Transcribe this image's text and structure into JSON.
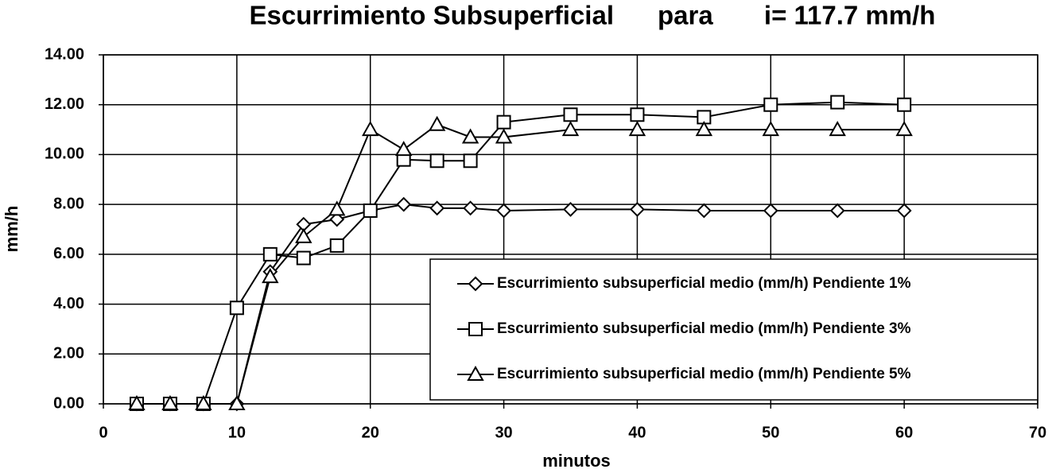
{
  "chart_data": {
    "type": "line",
    "title": "Escurrimiento Subsuperficial      para       i= 117.7 mm/h",
    "x_label": "minutos",
    "y_label": "mm/h",
    "x": [
      2.5,
      5,
      7.5,
      10,
      12.5,
      15,
      17.5,
      20,
      22.5,
      25,
      27.5,
      30,
      35,
      40,
      45,
      50,
      55,
      60
    ],
    "series": [
      {
        "name": "Escurrimiento subsuperficial medio (mm/h) Pendiente 1%",
        "color": "#000000",
        "marker": "diamond",
        "values": [
          0,
          0,
          0,
          0,
          5.3,
          7.2,
          7.4,
          7.75,
          8.0,
          7.85,
          7.85,
          7.75,
          7.8,
          7.8,
          7.75,
          7.75,
          7.75,
          7.75
        ]
      },
      {
        "name": "Escurrimiento subsuperficial medio (mm/h) Pendiente 3%",
        "color": "#000000",
        "marker": "square",
        "values": [
          0,
          0,
          0,
          3.85,
          6.0,
          5.85,
          6.35,
          7.75,
          9.8,
          9.75,
          9.75,
          11.3,
          11.6,
          11.6,
          11.5,
          12.0,
          12.1,
          12.0
        ]
      },
      {
        "name": "Escurrimiento subsuperficial medio (mm/h) Pendiente 5%",
        "color": "#000000",
        "marker": "triangle",
        "values": [
          0,
          0,
          0,
          0,
          5.1,
          6.7,
          7.8,
          11.0,
          10.2,
          11.2,
          10.7,
          10.7,
          11.0,
          11.0,
          11.0,
          11.0,
          11.0,
          11.0
        ]
      }
    ],
    "xlim": [
      0,
      70
    ],
    "xticks": [
      0,
      10,
      20,
      30,
      40,
      50,
      60,
      70
    ],
    "ylim": [
      0,
      14
    ],
    "yticks": [
      {
        "value": 0,
        "label": "0.00"
      },
      {
        "value": 2,
        "label": "2.00"
      },
      {
        "value": 4,
        "label": "4.00"
      },
      {
        "value": 6,
        "label": "6.00"
      },
      {
        "value": 8,
        "label": "8.00"
      },
      {
        "value": 10,
        "label": "10.00"
      },
      {
        "value": 12,
        "label": "12.00"
      },
      {
        "value": 14,
        "label": "14.00"
      }
    ],
    "grid": true,
    "legend": "lower right"
  }
}
